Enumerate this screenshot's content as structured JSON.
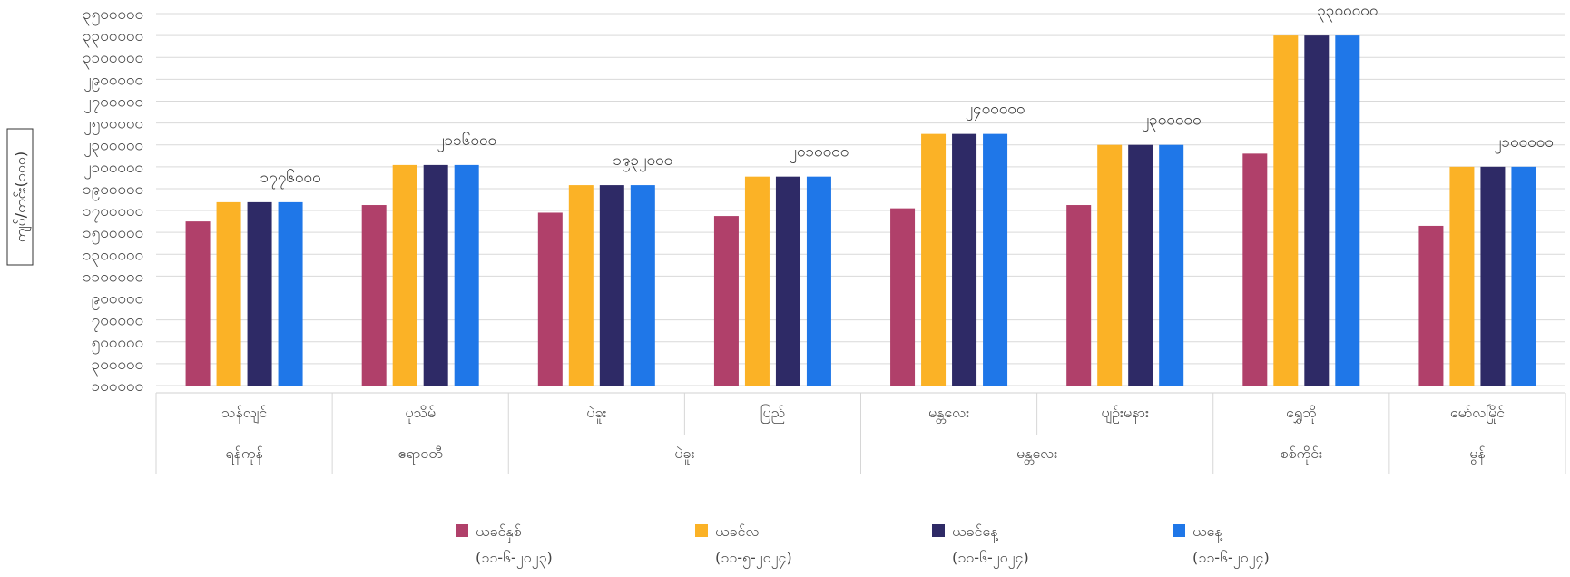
{
  "chart_data": {
    "type": "bar",
    "ylabel": "ကျပ်/တင်း(၁၀၀)",
    "y_ticks": [
      "၁၀၀၀၀၀",
      "၃၀၀၀၀၀",
      "၅၀၀၀၀၀",
      "၇၀၀၀၀၀",
      "၉၀၀၀၀၀",
      "၁၁၀၀၀၀၀",
      "၁၃၀၀၀၀၀",
      "၁၅၀၀၀၀၀",
      "၁၇၀၀၀၀၀",
      "၁၉၀၀၀၀၀",
      "၂၁၀၀၀၀၀",
      "၂၃၀၀၀၀၀",
      "၂၅၀၀၀၀၀",
      "၂၇၀၀၀၀၀",
      "၂၉၀၀၀၀၀",
      "၃၁၀၀၀၀၀",
      "၃၃၀၀၀၀၀",
      "၃၅၀၀၀၀၀"
    ],
    "ylim": [
      100000,
      3500000
    ],
    "categories": [
      {
        "label": "သန်လျင်",
        "data_label": "၁၇၇၆၀၀၀"
      },
      {
        "label": "ပုသိမ်",
        "data_label": "၂၁၁၆၀၀၀"
      },
      {
        "label": "ပဲခူး",
        "data_label": "၁၉၃၂၀၀၀"
      },
      {
        "label": "ပြည်",
        "data_label": "၂၀၁၀၀၀၀"
      },
      {
        "label": "မန္တလေး",
        "data_label": "၂၄၀၀၀၀၀"
      },
      {
        "label": "ပျဉ်းမနား",
        "data_label": "၂၃၀၀၀၀၀"
      },
      {
        "label": "ရွှေဘို",
        "data_label": "၃၃၀၀၀၀၀"
      },
      {
        "label": "မော်လမြိုင်",
        "data_label": "၂၁၀၀၀၀၀"
      }
    ],
    "groups": [
      {
        "label": "ရန်ကုန်",
        "span": [
          0,
          0
        ]
      },
      {
        "label": "ဧရာဝတီ",
        "span": [
          1,
          1
        ]
      },
      {
        "label": "ပဲခူး",
        "span": [
          2,
          3
        ]
      },
      {
        "label": "မန္တလေး",
        "span": [
          4,
          5
        ]
      },
      {
        "label": "စစ်ကိုင်း",
        "span": [
          6,
          6
        ]
      },
      {
        "label": "မွန်",
        "span": [
          7,
          7
        ]
      }
    ],
    "series": [
      {
        "name": "ယခင်နှစ်",
        "date": "(၁၁-၆-၂၀၂၃)",
        "color": "#b0406a",
        "values": [
          1600000,
          1750000,
          1680000,
          1650000,
          1720000,
          1750000,
          2220000,
          1560000
        ]
      },
      {
        "name": "ယခင်လ",
        "date": "(၁၁-၅-၂၀၂၄)",
        "color": "#fbb226",
        "values": [
          1776000,
          2116000,
          1932000,
          2010000,
          2400000,
          2300000,
          3300000,
          2100000
        ]
      },
      {
        "name": "ယခင်နေ့",
        "date": "(၁၀-၆-၂၀၂၄)",
        "color": "#2e2a66",
        "values": [
          1776000,
          2116000,
          1932000,
          2010000,
          2400000,
          2300000,
          3300000,
          2100000
        ]
      },
      {
        "name": "ယနေ့",
        "date": "(၁၁-၆-၂၀၂၄)",
        "color": "#1f77e8",
        "values": [
          1776000,
          2116000,
          1932000,
          2010000,
          2400000,
          2300000,
          3300000,
          2100000
        ]
      }
    ],
    "grid": true,
    "legend": "bottom"
  }
}
